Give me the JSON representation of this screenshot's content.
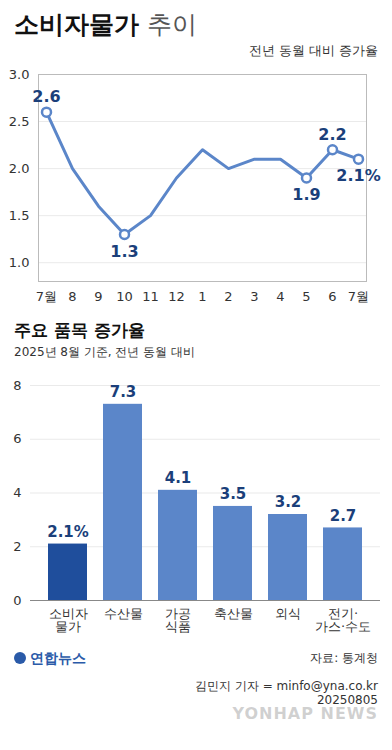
{
  "chart_data": [
    {
      "type": "line",
      "title": "소비자물가 추이",
      "subtitle": "전년 동월 대비 증가율",
      "categories": [
        "7월",
        "8",
        "9",
        "10",
        "11",
        "12",
        "1",
        "2",
        "3",
        "4",
        "5",
        "6",
        "7월"
      ],
      "values": [
        2.6,
        2.0,
        1.6,
        1.3,
        1.5,
        1.9,
        2.2,
        2.0,
        2.1,
        2.1,
        1.9,
        2.2,
        2.1
      ],
      "value_labels": [
        "2.6",
        null,
        null,
        "1.3",
        null,
        null,
        null,
        null,
        null,
        null,
        "1.9",
        "2.2",
        "2.1%"
      ],
      "data_labels": true,
      "color": "#5b86c9",
      "marker": "circle",
      "ylim": [
        0.8,
        3.0
      ],
      "yticks": [
        {
          "value": 1,
          "label": "1.0"
        },
        1.5,
        {
          "value": 2,
          "label": "2.0"
        },
        2.5,
        {
          "value": 3,
          "label": "3.0"
        }
      ],
      "grid": true
    },
    {
      "type": "bar",
      "title": "주요 품목 증가율",
      "subtitle": "2025년 8월 기준, 전년 동월 대비",
      "categories": [
        "소비자\n물가",
        "수산물",
        "가공\n식품",
        "축산물",
        "외식",
        "전기·\n가스·수도"
      ],
      "values": [
        2.1,
        7.3,
        4.1,
        3.5,
        3.2,
        2.7
      ],
      "value_labels": [
        "2.1%",
        "7.3",
        "4.1",
        "3.5",
        "3.2",
        "2.7"
      ],
      "data_labels": true,
      "colors": [
        "#1f4e9c",
        "#5b86c9",
        "#5b86c9",
        "#5b86c9",
        "#5b86c9",
        "#5b86c9"
      ],
      "ylim": [
        0,
        8
      ],
      "yticks": [
        0,
        2,
        4,
        6,
        8
      ],
      "grid": true
    }
  ],
  "logo": "연합뉴스",
  "source": "자료: 통계청",
  "credit": "김민지 기자 = minfo@yna.co.kr",
  "date": "20250805",
  "watermark": "YONHAP NEWS"
}
